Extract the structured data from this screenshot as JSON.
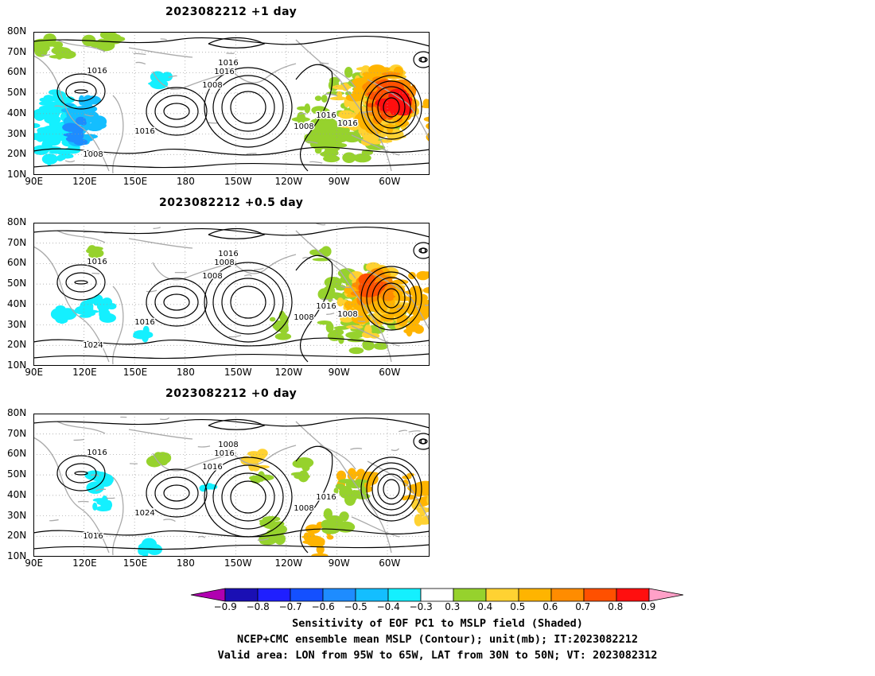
{
  "panels": [
    {
      "title": "2023082212  +1 day",
      "contour_labels": [
        "1016",
        "1016",
        "1016",
        "1008",
        "1016",
        "1008",
        "1008",
        "1016",
        "1016"
      ]
    },
    {
      "title": "2023082212  +0.5 day",
      "contour_labels": [
        "1016",
        "1016",
        "1008",
        "1008",
        "1016",
        "1024",
        "1008",
        "1016",
        "1008"
      ]
    },
    {
      "title": "2023082212  +0 day",
      "contour_labels": [
        "1016",
        "1008",
        "1016",
        "1016",
        "1024",
        "1016",
        "1008",
        "1016"
      ]
    }
  ],
  "lat_labels": [
    "80N",
    "70N",
    "60N",
    "50N",
    "40N",
    "30N",
    "20N",
    "10N"
  ],
  "lon_labels": [
    "90E",
    "120E",
    "150E",
    "180",
    "150W",
    "120W",
    "90W",
    "60W"
  ],
  "colorbar": {
    "ticks": [
      "-0.9",
      "-0.8",
      "-0.7",
      "-0.6",
      "-0.5",
      "-0.4",
      "-0.3",
      "0.3",
      "0.4",
      "0.5",
      "0.6",
      "0.7",
      "0.8",
      "0.9"
    ],
    "colors": [
      "#b000b0",
      "#1a0fb4",
      "#1f1fff",
      "#1450ff",
      "#1e8cff",
      "#14beff",
      "#14f0ff",
      "#ffffff",
      "#96d22d",
      "#ffd232",
      "#ffb400",
      "#ff8c00",
      "#ff5000",
      "#ff0f0f",
      "#ffa0c8"
    ]
  },
  "captions": [
    "Sensitivity of EOF PC1 to MSLP field (Shaded)",
    "NCEP+CMC ensemble mean MSLP (Contour); unit(mb); IT:2023082212",
    "Valid area: LON from 95W to 65W, LAT from 30N to 50N; VT: 2023082312"
  ]
}
